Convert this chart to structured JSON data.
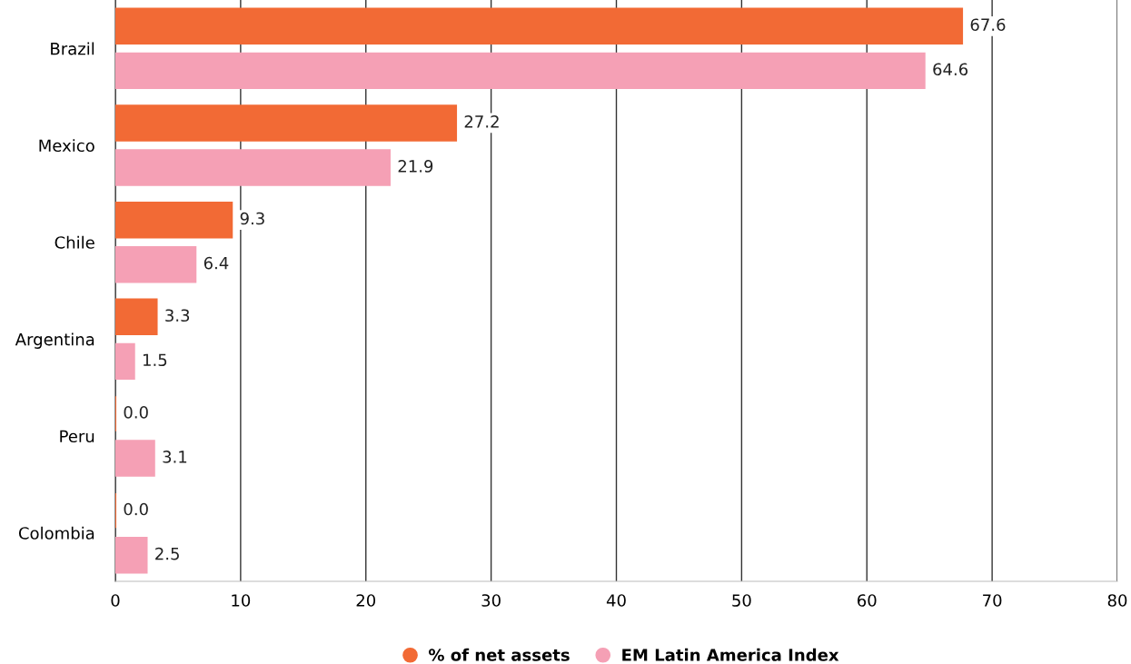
{
  "chart_data": {
    "type": "bar",
    "orientation": "horizontal",
    "categories": [
      "Brazil",
      "Mexico",
      "Chile",
      "Argentina",
      "Peru",
      "Colombia"
    ],
    "series": [
      {
        "name": "% of net assets",
        "color": "#f26a35",
        "values": [
          67.6,
          27.2,
          9.3,
          3.3,
          0.0,
          0.0
        ],
        "value_labels": [
          "67.6",
          "27.2",
          "9.3",
          "3.3",
          "0.0",
          "0.0"
        ]
      },
      {
        "name": "EM Latin America Index",
        "color": "#f5a0b5",
        "values": [
          64.6,
          21.9,
          6.4,
          1.5,
          3.1,
          2.5
        ],
        "value_labels": [
          "64.6",
          "21.9",
          "6.4",
          "1.5",
          "3.1",
          "2.5"
        ]
      }
    ],
    "xlim": [
      0,
      80
    ],
    "xticks": [
      0,
      10,
      20,
      30,
      40,
      50,
      60,
      70,
      80
    ],
    "grid": "x",
    "legend": "bottom",
    "marker": "circle"
  }
}
